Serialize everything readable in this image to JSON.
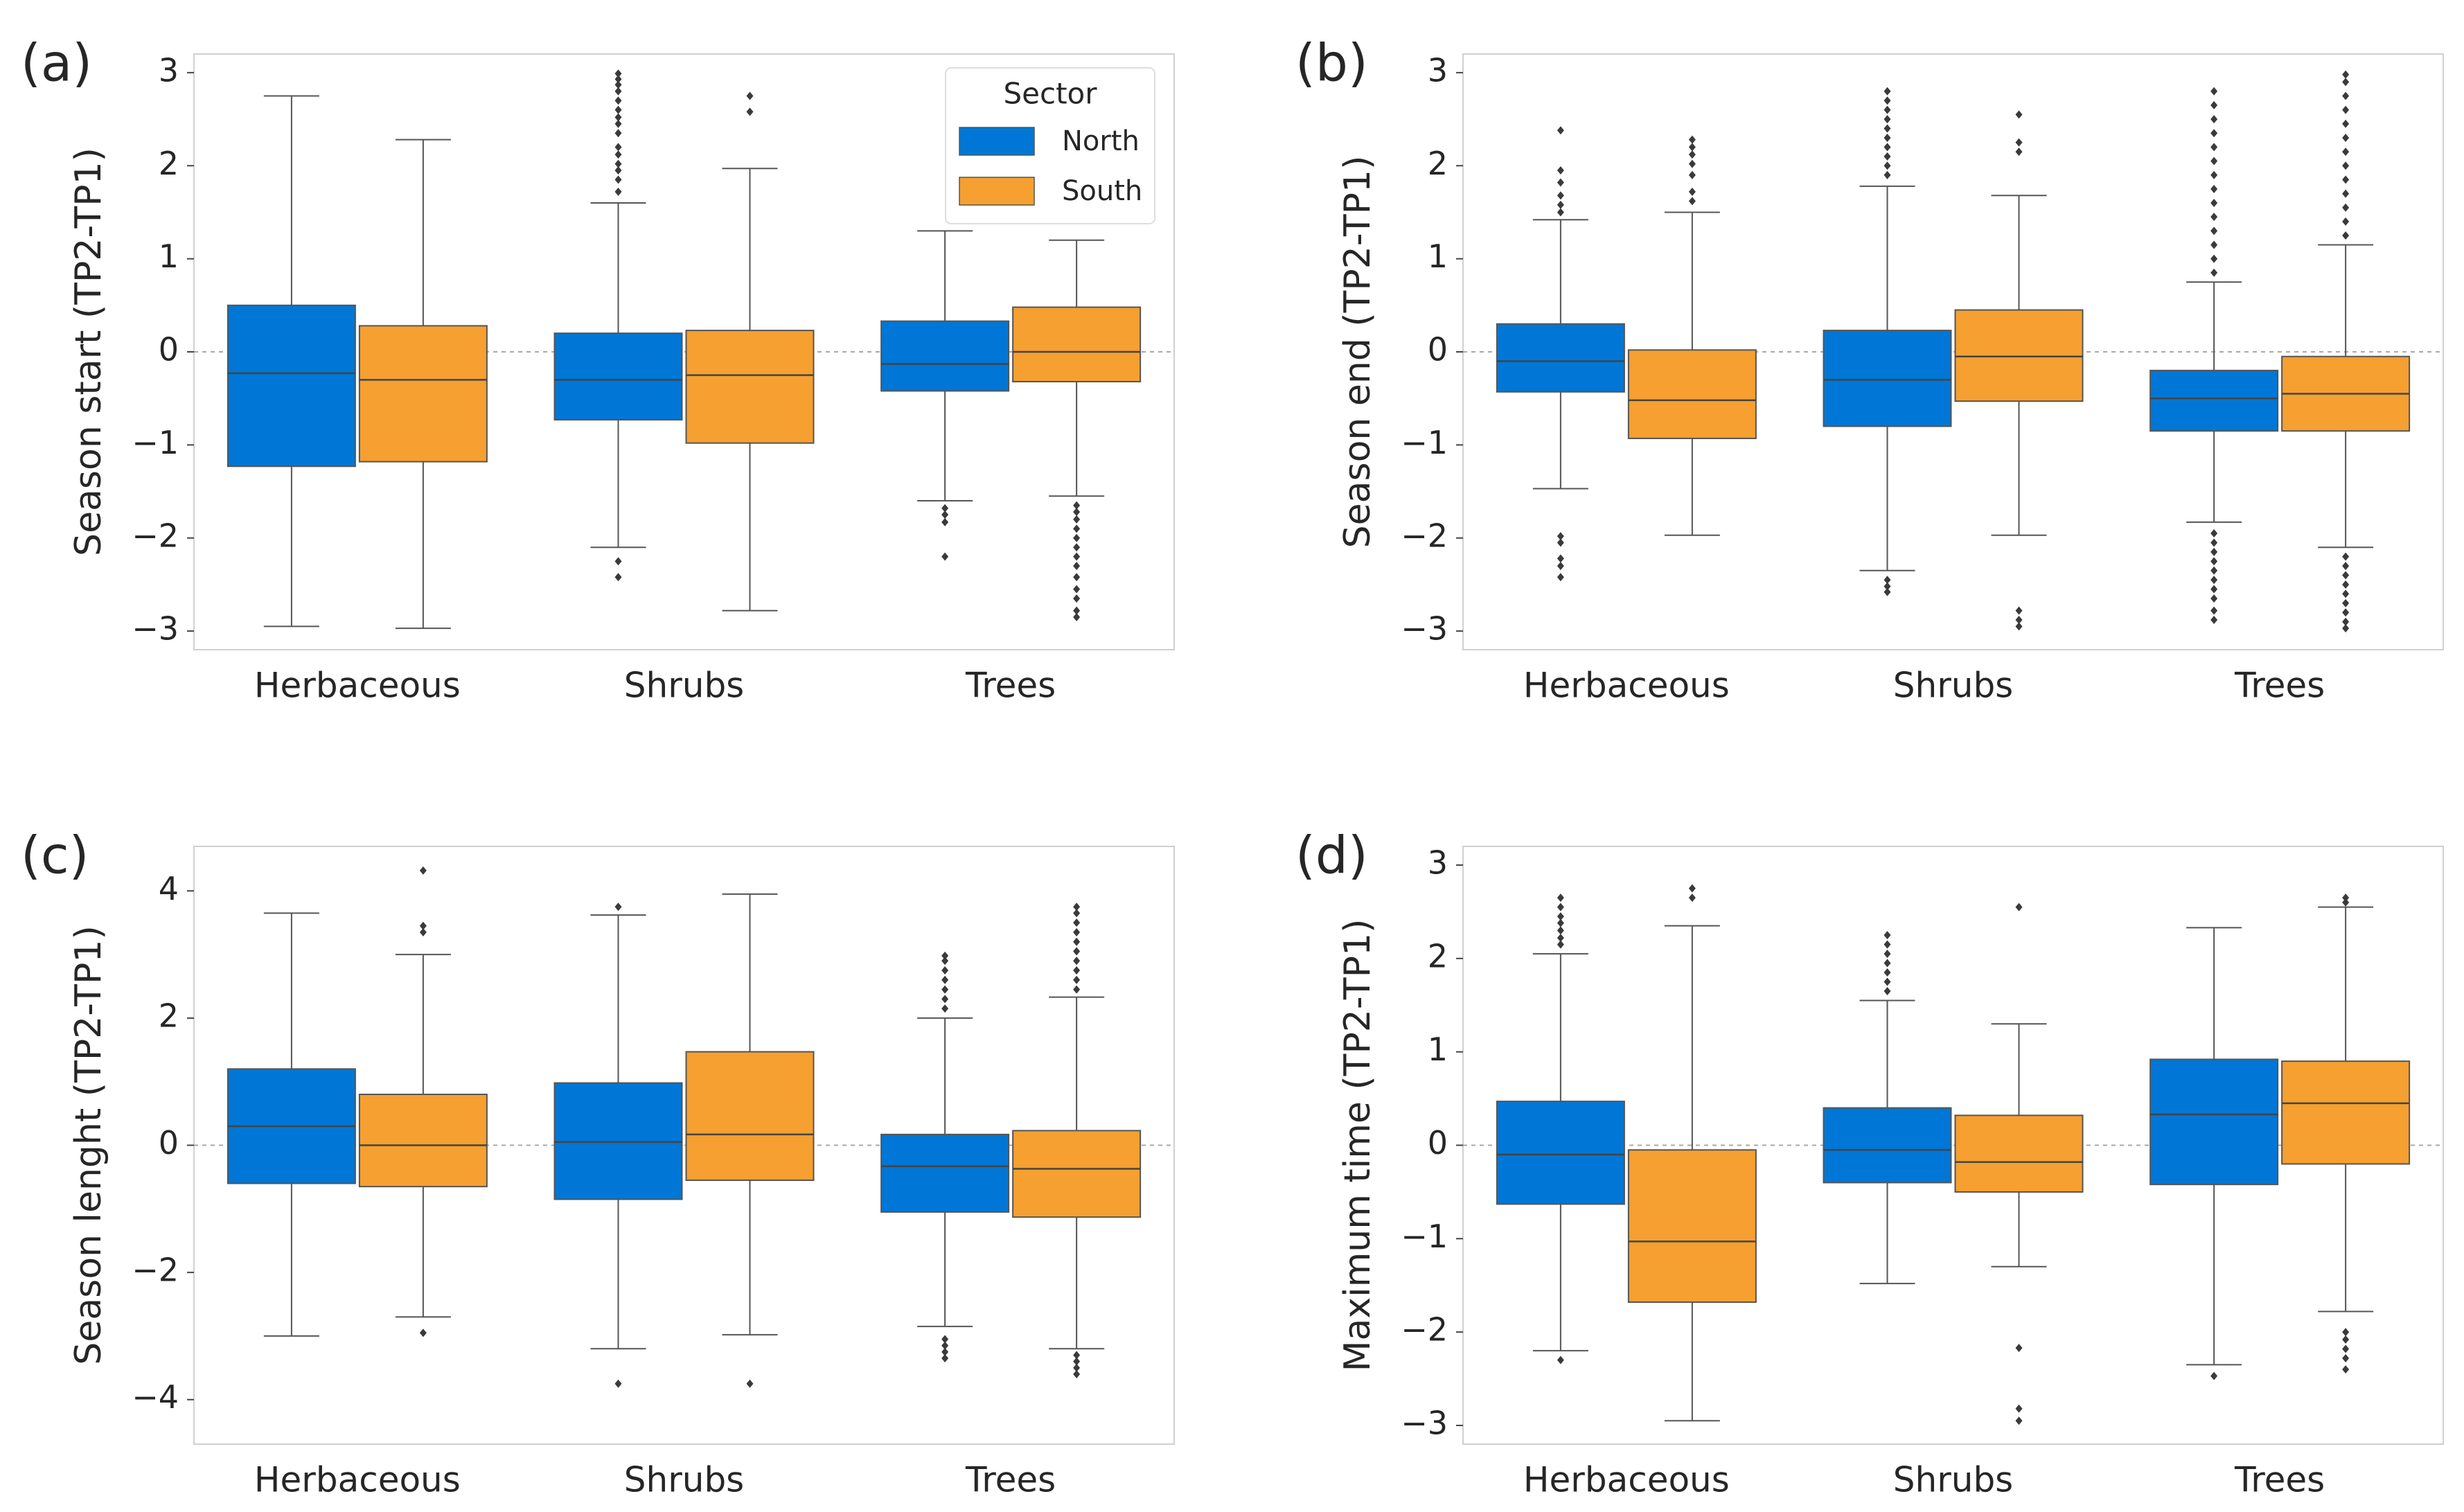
{
  "figure": {
    "sector_color_north": "#0077d6",
    "sector_color_south": "#f5a030"
  },
  "legend": {
    "title": "Sector",
    "entries": [
      {
        "label": "North",
        "color": "#0077d6"
      },
      {
        "label": "South",
        "color": "#f5a030"
      }
    ]
  },
  "chart_data": [
    {
      "type": "box",
      "panel_label": "(a)",
      "ylabel": "Season start (TP2-TP1)",
      "categories": [
        "Herbaceous",
        "Shrubs",
        "Trees"
      ],
      "ylim": [
        -3.2,
        3.2
      ],
      "yticks": [
        3,
        2,
        1,
        0,
        -1,
        -2,
        -3
      ],
      "ytick_labels": [
        "3",
        "2",
        "1",
        "0",
        "−1",
        "−2",
        "−3"
      ],
      "reference_line": 0,
      "legend_position": "top-right",
      "series": [
        {
          "name": "North",
          "color": "#0077d6",
          "boxes": [
            {
              "q1": -1.23,
              "median": -0.23,
              "q3": 0.5,
              "whislo": -2.95,
              "whishi": 2.75,
              "fliers": []
            },
            {
              "q1": -0.73,
              "median": -0.3,
              "q3": 0.2,
              "whislo": -2.1,
              "whishi": 1.6,
              "fliers": [
                1.72,
                1.85,
                1.95,
                2.02,
                2.12,
                2.2,
                2.35,
                2.45,
                2.52,
                2.6,
                2.7,
                2.8,
                2.87,
                2.93,
                2.99,
                -2.25,
                -2.42
              ]
            },
            {
              "q1": -0.42,
              "median": -0.13,
              "q3": 0.33,
              "whislo": -1.6,
              "whishi": 1.3,
              "fliers": [
                -1.68,
                -1.75,
                -1.83,
                -2.2
              ]
            }
          ]
        },
        {
          "name": "South",
          "color": "#f5a030",
          "boxes": [
            {
              "q1": -1.18,
              "median": -0.3,
              "q3": 0.28,
              "whislo": -2.97,
              "whishi": 2.28,
              "fliers": []
            },
            {
              "q1": -0.98,
              "median": -0.25,
              "q3": 0.23,
              "whislo": -2.78,
              "whishi": 1.97,
              "fliers": [
                2.58,
                2.75
              ]
            },
            {
              "q1": -0.32,
              "median": 0.0,
              "q3": 0.48,
              "whislo": -1.55,
              "whishi": 1.2,
              "fliers": [
                -1.65,
                -1.72,
                -1.8,
                -1.9,
                -2.0,
                -2.1,
                -2.2,
                -2.3,
                -2.42,
                -2.55,
                -2.65,
                -2.78,
                -2.85
              ]
            }
          ]
        }
      ]
    },
    {
      "type": "box",
      "panel_label": "(b)",
      "ylabel": "Season end (TP2-TP1)",
      "categories": [
        "Herbaceous",
        "Shrubs",
        "Trees"
      ],
      "ylim": [
        -3.2,
        3.2
      ],
      "yticks": [
        3,
        2,
        1,
        0,
        -1,
        -2,
        -3
      ],
      "ytick_labels": [
        "3",
        "2",
        "1",
        "0",
        "−1",
        "−2",
        "−3"
      ],
      "reference_line": 0,
      "series": [
        {
          "name": "North",
          "color": "#0077d6",
          "boxes": [
            {
              "q1": -0.43,
              "median": -0.1,
              "q3": 0.3,
              "whislo": -1.47,
              "whishi": 1.42,
              "fliers": [
                1.5,
                1.58,
                1.68,
                1.82,
                1.95,
                2.38,
                -1.98,
                -2.05,
                -2.22,
                -2.3,
                -2.42
              ]
            },
            {
              "q1": -0.8,
              "median": -0.3,
              "q3": 0.23,
              "whislo": -2.35,
              "whishi": 1.78,
              "fliers": [
                1.9,
                2.0,
                2.1,
                2.2,
                2.3,
                2.4,
                2.5,
                2.6,
                2.7,
                2.8,
                -2.45,
                -2.52,
                -2.58
              ]
            },
            {
              "q1": -0.85,
              "median": -0.5,
              "q3": -0.2,
              "whislo": -1.83,
              "whishi": 0.75,
              "fliers": [
                0.85,
                1.0,
                1.15,
                1.3,
                1.45,
                1.6,
                1.75,
                1.9,
                2.05,
                2.2,
                2.35,
                2.5,
                2.65,
                2.8,
                -1.95,
                -2.05,
                -2.15,
                -2.25,
                -2.35,
                -2.45,
                -2.55,
                -2.65,
                -2.78,
                -2.88
              ]
            }
          ]
        },
        {
          "name": "South",
          "color": "#f5a030",
          "boxes": [
            {
              "q1": -0.93,
              "median": -0.52,
              "q3": 0.02,
              "whislo": -1.97,
              "whishi": 1.5,
              "fliers": [
                1.62,
                1.72,
                1.9,
                2.02,
                2.12,
                2.2,
                2.28
              ]
            },
            {
              "q1": -0.53,
              "median": -0.05,
              "q3": 0.45,
              "whislo": -1.97,
              "whishi": 1.68,
              "fliers": [
                2.15,
                2.25,
                2.55,
                -2.78,
                -2.88,
                -2.95
              ]
            },
            {
              "q1": -0.85,
              "median": -0.45,
              "q3": -0.05,
              "whislo": -2.1,
              "whishi": 1.15,
              "fliers": [
                1.25,
                1.4,
                1.55,
                1.7,
                1.85,
                2.0,
                2.15,
                2.3,
                2.45,
                2.6,
                2.75,
                2.9,
                2.98,
                -2.2,
                -2.3,
                -2.4,
                -2.5,
                -2.6,
                -2.7,
                -2.8,
                -2.9,
                -2.97
              ]
            }
          ]
        }
      ]
    },
    {
      "type": "box",
      "panel_label": "(c)",
      "ylabel": "Season lenght (TP2-TP1)",
      "categories": [
        "Herbaceous",
        "Shrubs",
        "Trees"
      ],
      "ylim": [
        -4.7,
        4.7
      ],
      "yticks": [
        4,
        2,
        0,
        -2,
        -4
      ],
      "ytick_labels": [
        "4",
        "2",
        "0",
        "−2",
        "−4"
      ],
      "reference_line": 0,
      "series": [
        {
          "name": "North",
          "color": "#0077d6",
          "boxes": [
            {
              "q1": -0.6,
              "median": 0.3,
              "q3": 1.2,
              "whislo": -3.0,
              "whishi": 3.65,
              "fliers": []
            },
            {
              "q1": -0.85,
              "median": 0.05,
              "q3": 0.98,
              "whislo": -3.2,
              "whishi": 3.62,
              "fliers": [
                3.75,
                -3.75
              ]
            },
            {
              "q1": -1.05,
              "median": -0.33,
              "q3": 0.17,
              "whislo": -2.85,
              "whishi": 2.0,
              "fliers": [
                2.15,
                2.3,
                2.45,
                2.6,
                2.75,
                2.9,
                2.98,
                -3.05,
                -3.15,
                -3.25,
                -3.35
              ]
            }
          ]
        },
        {
          "name": "South",
          "color": "#f5a030",
          "boxes": [
            {
              "q1": -0.65,
              "median": 0.0,
              "q3": 0.8,
              "whislo": -2.7,
              "whishi": 3.0,
              "fliers": [
                3.35,
                3.45,
                4.32,
                -2.95
              ]
            },
            {
              "q1": -0.55,
              "median": 0.17,
              "q3": 1.47,
              "whislo": -2.98,
              "whishi": 3.95,
              "fliers": [
                -3.75
              ]
            },
            {
              "q1": -1.13,
              "median": -0.37,
              "q3": 0.23,
              "whislo": -3.2,
              "whishi": 2.33,
              "fliers": [
                2.45,
                2.6,
                2.75,
                2.9,
                3.05,
                3.2,
                3.35,
                3.5,
                3.65,
                3.75,
                -3.3,
                -3.4,
                -3.5,
                -3.6
              ]
            }
          ]
        }
      ]
    },
    {
      "type": "box",
      "panel_label": "(d)",
      "ylabel": "Maximum time (TP2-TP1)",
      "categories": [
        "Herbaceous",
        "Shrubs",
        "Trees"
      ],
      "ylim": [
        -3.2,
        3.2
      ],
      "yticks": [
        3,
        2,
        1,
        0,
        -1,
        -2,
        -3
      ],
      "ytick_labels": [
        "3",
        "2",
        "1",
        "0",
        "−1",
        "−2",
        "−3"
      ],
      "reference_line": 0,
      "series": [
        {
          "name": "North",
          "color": "#0077d6",
          "boxes": [
            {
              "q1": -0.63,
              "median": -0.1,
              "q3": 0.47,
              "whislo": -2.2,
              "whishi": 2.05,
              "fliers": [
                2.15,
                2.22,
                2.3,
                2.38,
                2.45,
                2.55,
                2.65,
                -2.3
              ]
            },
            {
              "q1": -0.4,
              "median": -0.05,
              "q3": 0.4,
              "whislo": -1.48,
              "whishi": 1.55,
              "fliers": [
                1.65,
                1.75,
                1.85,
                1.95,
                2.05,
                2.15,
                2.25
              ]
            },
            {
              "q1": -0.42,
              "median": 0.33,
              "q3": 0.92,
              "whislo": -2.35,
              "whishi": 2.33,
              "fliers": [
                -2.47
              ]
            }
          ]
        },
        {
          "name": "South",
          "color": "#f5a030",
          "boxes": [
            {
              "q1": -1.68,
              "median": -1.03,
              "q3": -0.05,
              "whislo": -2.95,
              "whishi": 2.35,
              "fliers": [
                2.65,
                2.75
              ]
            },
            {
              "q1": -0.5,
              "median": -0.18,
              "q3": 0.32,
              "whislo": -1.3,
              "whishi": 1.3,
              "fliers": [
                2.55,
                -2.17,
                -2.82,
                -2.95
              ]
            },
            {
              "q1": -0.2,
              "median": 0.45,
              "q3": 0.9,
              "whislo": -1.78,
              "whishi": 2.55,
              "fliers": [
                2.6,
                2.65,
                -2.0,
                -2.08,
                -2.18,
                -2.28,
                -2.4
              ]
            }
          ]
        }
      ]
    }
  ]
}
